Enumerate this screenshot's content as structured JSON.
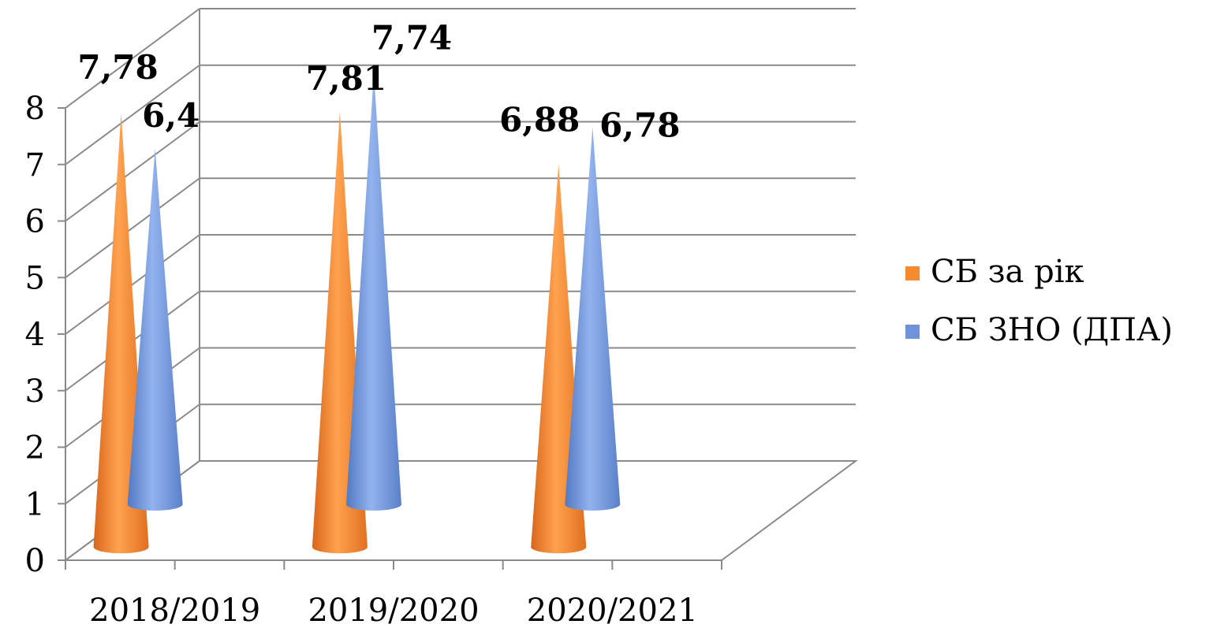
{
  "chart_data": {
    "type": "bar",
    "categories": [
      "2018/2019",
      "2019/2020",
      "2020/2021"
    ],
    "series": [
      {
        "name": "СБ за рік",
        "values": [
          7.78,
          7.81,
          6.88
        ],
        "labels": [
          "7,78",
          "7,81",
          "6,88"
        ],
        "color": "#f58b2f"
      },
      {
        "name": "СБ ЗНО (ДПА)",
        "values": [
          6.4,
          7.74,
          6.78
        ],
        "labels": [
          "6,4",
          "7,74",
          "6,78"
        ],
        "color": "#6f93d8"
      }
    ],
    "ylim": [
      0,
      8
    ],
    "yticks": [
      "0",
      "1",
      "2",
      "3",
      "4",
      "5",
      "6",
      "7",
      "8"
    ],
    "grid": true,
    "legend": "right"
  }
}
